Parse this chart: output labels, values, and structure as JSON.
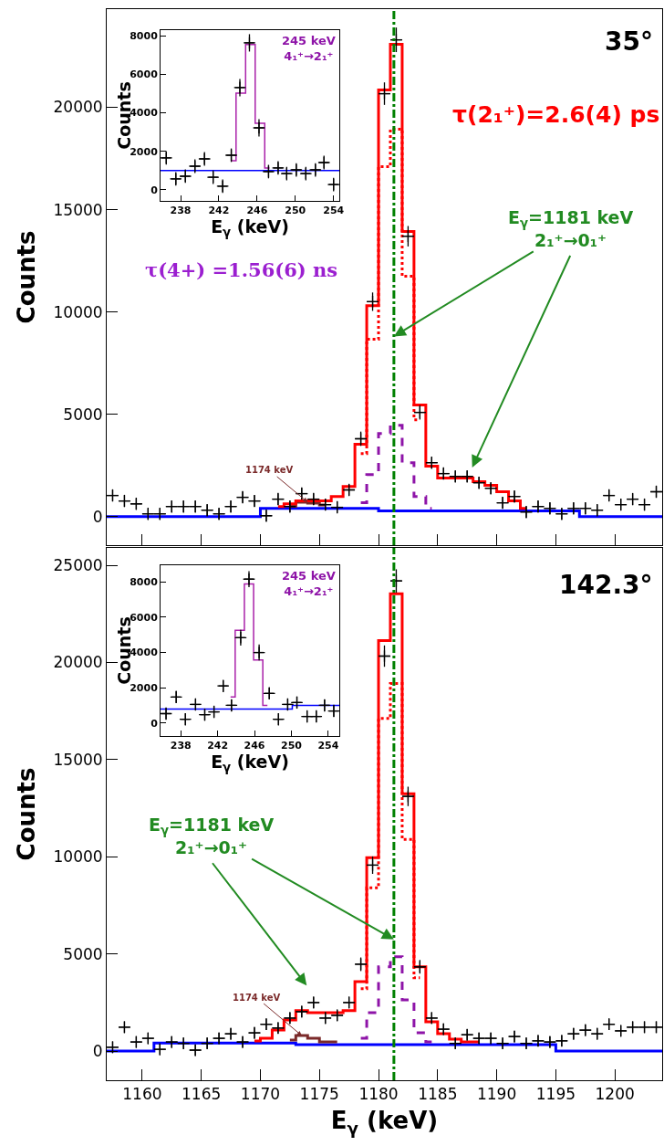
{
  "chart_data": [
    {
      "type": "step",
      "ylabel": "Counts",
      "tick_labels": "y",
      "xlim": [
        1157,
        1204
      ],
      "xticks": [
        1160,
        1165,
        1170,
        1175,
        1180,
        1185,
        1190,
        1195,
        1200
      ],
      "ylim": [
        -1400,
        24800
      ],
      "yticks": [
        0,
        5000,
        10000,
        15000,
        20000
      ],
      "series": [
        {
          "type": "line",
          "color": "#0000ff",
          "x": [
            1157,
            1170,
            1170,
            1180,
            1180,
            1197,
            1197,
            1204
          ],
          "values": [
            0,
            0,
            400,
            400,
            270,
            270,
            0,
            0
          ]
        },
        {
          "type": "step",
          "color": "#7b2a2a",
          "x": [
            1172.5,
            1173.5,
            1174.5,
            1175.5
          ],
          "values": [
            500,
            700,
            650,
            560
          ]
        },
        {
          "type": "step",
          "color": "#8e14a8",
          "line_style": "dashed",
          "x": [
            1178.5,
            1179.5,
            1180.5,
            1181.5,
            1182.5,
            1183.5,
            1184.5
          ],
          "values": [
            670,
            2050,
            4060,
            4460,
            2630,
            980,
            400
          ]
        },
        {
          "type": "step",
          "color": "#ff0000",
          "line_style": "dotted",
          "x": [
            1178.5,
            1179.5,
            1180.5,
            1181.5,
            1182.5,
            1183.5
          ],
          "values": [
            3080,
            8660,
            17100,
            18930,
            11740,
            4730
          ]
        },
        {
          "type": "step",
          "color": "#ff0000",
          "x": [
            1171.5,
            1172.5,
            1173.5,
            1174.5,
            1175.5,
            1176.5,
            1177.5,
            1178.5,
            1179.5,
            1180.5,
            1181.5,
            1182.5,
            1183.5,
            1184.5,
            1185.5,
            1186.5,
            1187.5,
            1188.5,
            1189.5,
            1190.5,
            1191.5,
            1192.5
          ],
          "values": [
            490,
            620,
            760,
            760,
            760,
            980,
            1470,
            3530,
            10300,
            20850,
            23080,
            13930,
            5450,
            2460,
            1880,
            1880,
            1880,
            1700,
            1520,
            1210,
            760,
            400
          ]
        },
        {
          "type": "scatter",
          "marker": "cross",
          "color": "#000000",
          "x": [
            1157.5,
            1158.5,
            1159.5,
            1160.5,
            1161.5,
            1162.5,
            1163.5,
            1164.5,
            1165.5,
            1166.5,
            1167.5,
            1168.5,
            1169.5,
            1170.5,
            1171.5,
            1172.5,
            1173.5,
            1174.5,
            1175.5,
            1176.5,
            1177.5,
            1178.5,
            1179.5,
            1180.5,
            1181.5,
            1182.5,
            1183.5,
            1184.5,
            1185.5,
            1186.5,
            1187.5,
            1188.5,
            1189.5,
            1190.5,
            1191.5,
            1192.5,
            1193.5,
            1194.5,
            1195.5,
            1196.5,
            1197.5,
            1198.5,
            1199.5,
            1200.5,
            1201.5,
            1202.5,
            1203.5
          ],
          "values": [
            1030,
            760,
            620,
            130,
            130,
            490,
            490,
            490,
            310,
            130,
            490,
            940,
            760,
            40,
            850,
            490,
            1120,
            850,
            580,
            450,
            1300,
            3800,
            10500,
            20670,
            23300,
            13700,
            5090,
            2630,
            2100,
            1960,
            1960,
            1650,
            1380,
            670,
            980,
            220,
            490,
            400,
            130,
            400,
            400,
            310,
            1030,
            580,
            850,
            580,
            1210
          ],
          "errors": [
            300,
            300,
            300,
            300,
            300,
            300,
            300,
            300,
            300,
            300,
            300,
            300,
            300,
            300,
            300,
            300,
            300,
            300,
            300,
            300,
            300,
            350,
            450,
            550,
            600,
            500,
            350,
            300,
            300,
            300,
            300,
            300,
            300,
            300,
            300,
            300,
            300,
            300,
            300,
            300,
            300,
            300,
            300,
            300,
            300,
            300,
            300
          ],
          "xerrors": [
            0.5,
            0.5,
            0.5,
            0.5,
            0.5,
            0.5,
            0.5,
            0.5,
            0.5,
            0.5,
            0.5,
            0.5,
            0.5,
            0.5,
            0.5,
            0.5,
            0.5,
            0.5,
            0.5,
            0.5,
            0.5,
            0.5,
            0.5,
            0.5,
            0.5,
            0.5,
            0.5,
            0.5,
            0.5,
            0.5,
            0.5,
            0.5,
            0.5,
            0.5,
            0.5,
            0.5,
            0.5,
            0.5,
            0.5,
            0.5,
            0.5,
            0.5,
            0.5,
            0.5,
            0.5,
            0.5,
            0.5
          ]
        }
      ],
      "ref_lines": [
        {
          "axis": "x",
          "value": 1181.3,
          "color": "#008000",
          "line_style": "dashed"
        }
      ],
      "annotations": [
        "35°",
        "τ(2₁⁺)=2.6(4) ps",
        "τ(4+) =1.56(6) ns",
        {
          "text": "E$_{γ}$=1181 keV\n2₁⁺→0₁⁺",
          "x": 1181.3,
          "y": 8800
        },
        {
          "text": "1174 keV",
          "x": 1174,
          "y": 700
        }
      ]
    },
    {
      "type": "step",
      "xlabel": "E$_{γ}$ (keV)",
      "ylabel": "Counts",
      "xlim": [
        235.9,
        254.6
      ],
      "xticks": [
        238,
        242,
        246,
        250,
        254
      ],
      "ylim": [
        -570,
        8290
      ],
      "yticks": [
        0,
        2000,
        4000,
        6000,
        8000
      ],
      "series": [
        {
          "type": "line",
          "color": "#0000ff",
          "x": [
            235.9,
            254.6
          ],
          "values": [
            1000,
            1000
          ]
        },
        {
          "type": "step",
          "color": "#aa22aa",
          "x": [
            243.3,
            244.3,
            245.3,
            246.3,
            247.3
          ],
          "values": [
            1520,
            5020,
            7540,
            3460,
            1140
          ]
        },
        {
          "type": "scatter",
          "marker": "cross",
          "color": "#000000",
          "x": [
            236.5,
            237.5,
            238.5,
            239.5,
            240.5,
            241.4,
            242.4,
            243.3,
            244.2,
            245.2,
            246.2,
            247.2,
            248.2,
            249.1,
            250.1,
            251.1,
            252.1,
            253.0,
            254.0
          ],
          "values": [
            1660,
            570,
            710,
            1230,
            1610,
            660,
            190,
            1800,
            5310,
            7630,
            3220,
            950,
            1140,
            850,
            1040,
            850,
            1040,
            1420,
            280
          ],
          "errors": [
            350,
            350,
            350,
            350,
            350,
            350,
            350,
            350,
            450,
            450,
            450,
            350,
            350,
            350,
            350,
            350,
            350,
            350,
            350
          ],
          "xerrors": [
            0.5,
            0.5,
            0.5,
            0.5,
            0.5,
            0.5,
            0.5,
            0.5,
            0.5,
            0.5,
            0.5,
            0.5,
            0.5,
            0.5,
            0.5,
            0.5,
            0.5,
            0.5,
            0.5
          ]
        }
      ],
      "annotations": [
        "245 keV\n4₁⁺→2₁⁺"
      ]
    },
    {
      "type": "step",
      "xlabel": "E$_{γ}$ (keV)",
      "ylabel": "Counts",
      "xlim": [
        1157,
        1204
      ],
      "xticks": [
        1160,
        1165,
        1170,
        1175,
        1180,
        1185,
        1190,
        1195,
        1200
      ],
      "ylim": [
        -1500,
        25900
      ],
      "yticks": [
        0,
        5000,
        10000,
        15000,
        20000,
        25000
      ],
      "series": [
        {
          "type": "line",
          "color": "#0000ff",
          "x": [
            1157,
            1161,
            1161,
            1173,
            1173,
            1195,
            1195,
            1204
          ],
          "values": [
            0,
            0,
            420,
            420,
            330,
            330,
            0,
            0
          ]
        },
        {
          "type": "step",
          "color": "#7b2a2a",
          "x": [
            1172.5,
            1173.5,
            1174.5,
            1175.5,
            1176.5
          ],
          "values": [
            570,
            800,
            660,
            470,
            470
          ]
        },
        {
          "type": "step",
          "color": "#8e14a8",
          "line_style": "dashed",
          "x": [
            1178.5,
            1179.5,
            1180.5,
            1181.5,
            1182.5,
            1183.5,
            1184.5
          ],
          "values": [
            660,
            1980,
            4340,
            4860,
            2640,
            940,
            470
          ]
        },
        {
          "type": "step",
          "color": "#ff0000",
          "line_style": "dotted",
          "x": [
            1178.5,
            1179.5,
            1180.5,
            1181.5,
            1182.5,
            1183.5
          ],
          "values": [
            3210,
            8400,
            17120,
            18920,
            10900,
            3770
          ]
        },
        {
          "type": "step",
          "color": "#ff0000",
          "x": [
            1169.5,
            1170.5,
            1171.5,
            1172.5,
            1173.5,
            1174.5,
            1175.5,
            1176.5,
            1177.5,
            1178.5,
            1179.5,
            1180.5,
            1181.5,
            1182.5,
            1183.5,
            1184.5,
            1185.5,
            1186.5,
            1187.5,
            1188.5
          ],
          "values": [
            520,
            660,
            1080,
            1600,
            2080,
            1980,
            1980,
            1980,
            2080,
            3580,
            9950,
            21130,
            23540,
            13250,
            4340,
            1510,
            900,
            610,
            470,
            470
          ]
        },
        {
          "type": "scatter",
          "marker": "cross",
          "color": "#000000",
          "x": [
            1157.5,
            1158.5,
            1159.5,
            1160.5,
            1161.5,
            1162.5,
            1163.5,
            1164.5,
            1165.5,
            1166.5,
            1167.5,
            1168.5,
            1169.5,
            1170.5,
            1171.5,
            1172.5,
            1173.5,
            1174.5,
            1175.5,
            1176.5,
            1177.5,
            1178.5,
            1179.5,
            1180.5,
            1181.5,
            1182.5,
            1183.5,
            1184.5,
            1185.5,
            1186.5,
            1187.5,
            1188.5,
            1189.5,
            1190.5,
            1191.5,
            1192.5,
            1193.5,
            1194.5,
            1195.5,
            1196.5,
            1197.5,
            1198.5,
            1199.5,
            1200.5,
            1201.5,
            1202.5,
            1203.5
          ],
          "values": [
            200,
            1230,
            470,
            660,
            90,
            470,
            400,
            50,
            400,
            660,
            890,
            470,
            940,
            1380,
            1190,
            1700,
            2030,
            2500,
            1700,
            1840,
            2500,
            4470,
            9570,
            20330,
            24200,
            13110,
            4340,
            1700,
            1130,
            400,
            840,
            660,
            660,
            400,
            750,
            400,
            530,
            470,
            530,
            890,
            1080,
            890,
            1380,
            1040,
            1230,
            1230,
            1230
          ],
          "errors": [
            300,
            300,
            300,
            300,
            300,
            300,
            300,
            300,
            300,
            300,
            300,
            300,
            300,
            300,
            300,
            300,
            300,
            300,
            300,
            300,
            300,
            350,
            450,
            550,
            600,
            500,
            350,
            300,
            300,
            300,
            300,
            300,
            300,
            300,
            300,
            300,
            300,
            300,
            300,
            300,
            300,
            300,
            300,
            300,
            300,
            300,
            300
          ],
          "xerrors": [
            0.5,
            0.5,
            0.5,
            0.5,
            0.5,
            0.5,
            0.5,
            0.5,
            0.5,
            0.5,
            0.5,
            0.5,
            0.5,
            0.5,
            0.5,
            0.5,
            0.5,
            0.5,
            0.5,
            0.5,
            0.5,
            0.5,
            0.5,
            0.5,
            0.5,
            0.5,
            0.5,
            0.5,
            0.5,
            0.5,
            0.5,
            0.5,
            0.5,
            0.5,
            0.5,
            0.5,
            0.5,
            0.5,
            0.5,
            0.5,
            0.5,
            0.5,
            0.5,
            0.5,
            0.5,
            0.5,
            0.5
          ]
        }
      ],
      "ref_lines": [
        {
          "axis": "x",
          "value": 1181.3,
          "color": "#008000",
          "line_style": "dashed"
        }
      ],
      "annotations": [
        "142.3°",
        {
          "text": "E$_{γ}$=1181 keV\n2₁⁺→0₁⁺",
          "x": 1181.3,
          "y": 5750
        },
        {
          "text": "1174 keV",
          "x": 1173.5,
          "y": 800
        }
      ]
    },
    {
      "type": "step",
      "xlabel": "E$_{γ}$ (keV)",
      "ylabel": "Counts",
      "xlim": [
        235.8,
        255.2
      ],
      "xticks": [
        238,
        242,
        246,
        250,
        254
      ],
      "ylim": [
        -740,
        8950
      ],
      "yticks": [
        0,
        2000,
        4000,
        6000,
        8000
      ],
      "series": [
        {
          "type": "line",
          "color": "#0000ff",
          "x": [
            235.8,
            250.1,
            250.1,
            255.2
          ],
          "values": [
            790,
            790,
            1000,
            1000
          ]
        },
        {
          "type": "step",
          "color": "#aa22aa",
          "x": [
            243.4,
            244.4,
            245.4,
            246.4,
            247.4
          ],
          "values": [
            1470,
            5260,
            7890,
            3580,
            1000
          ]
        },
        {
          "type": "scatter",
          "marker": "cross",
          "color": "#000000",
          "x": [
            236.4,
            237.5,
            238.5,
            239.6,
            240.6,
            241.6,
            242.6,
            243.5,
            244.5,
            245.4,
            246.5,
            247.6,
            248.6,
            249.6,
            250.6,
            251.7,
            252.7,
            253.6,
            254.6
          ],
          "values": [
            530,
            1470,
            210,
            1050,
            470,
            630,
            2100,
            1000,
            4840,
            8160,
            4000,
            1680,
            210,
            1050,
            1160,
            370,
            370,
            1000,
            680
          ],
          "errors": [
            350,
            350,
            350,
            350,
            350,
            350,
            350,
            350,
            450,
            450,
            450,
            350,
            350,
            350,
            350,
            350,
            350,
            350,
            350
          ],
          "xerrors": [
            0.5,
            0.5,
            0.5,
            0.5,
            0.5,
            0.5,
            0.5,
            0.5,
            0.5,
            0.5,
            0.5,
            0.5,
            0.5,
            0.5,
            0.5,
            0.5,
            0.5,
            0.5,
            0.5
          ]
        }
      ],
      "annotations": [
        "245 keV\n4₁⁺→2₁⁺"
      ]
    }
  ]
}
